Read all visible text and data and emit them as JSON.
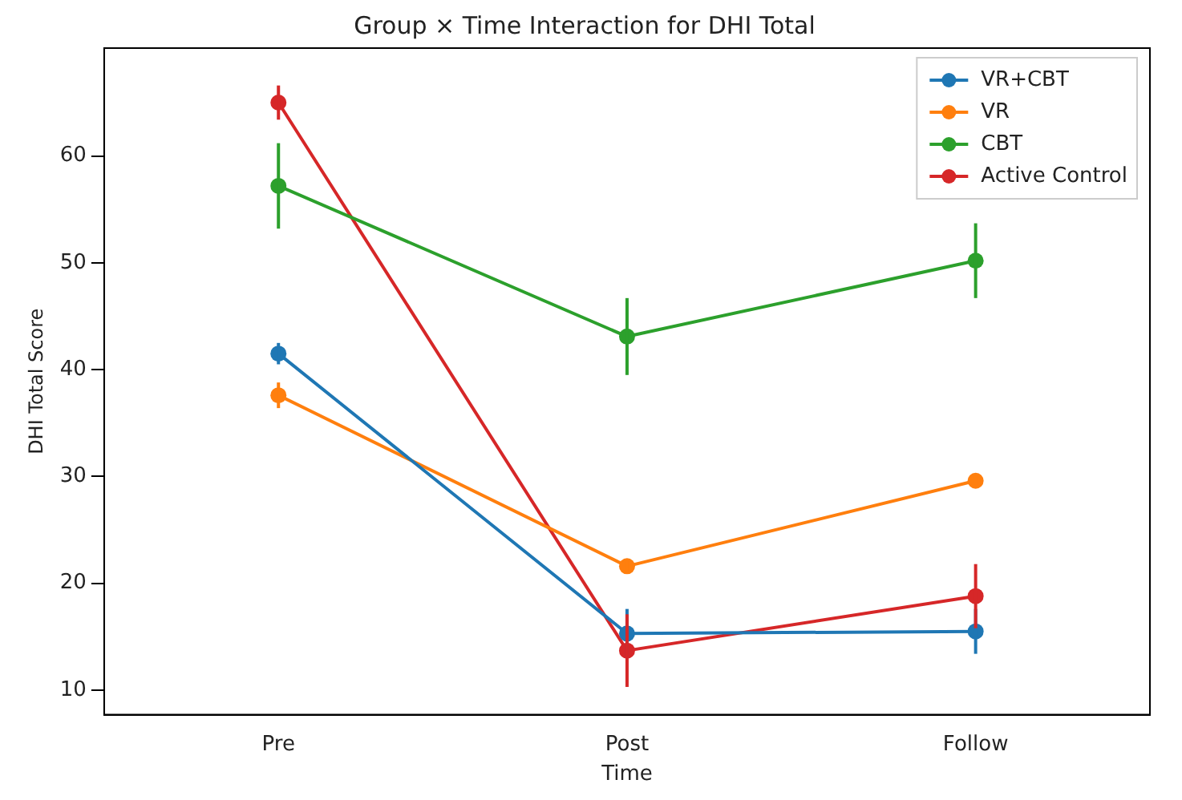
{
  "chart_data": {
    "type": "line",
    "title": "Group × Time Interaction for DHI Total",
    "xlabel": "Time",
    "ylabel": "DHI Total Score",
    "categories": [
      "Pre",
      "Post",
      "Follow"
    ],
    "series": [
      {
        "name": "VR+CBT",
        "color": "#1f77b4",
        "values": [
          41.5,
          15.3,
          15.5
        ],
        "errors": [
          1,
          2.3,
          2.1
        ]
      },
      {
        "name": "VR",
        "color": "#ff7f0e",
        "values": [
          37.6,
          21.6,
          29.6
        ],
        "errors": [
          1.2,
          0.5,
          0.5
        ]
      },
      {
        "name": "CBT",
        "color": "#2ca02c",
        "values": [
          57.2,
          43.1,
          50.2
        ],
        "errors": [
          4,
          3.6,
          3.5
        ]
      },
      {
        "name": "Active Control",
        "color": "#d62728",
        "values": [
          65,
          13.7,
          18.8
        ],
        "errors": [
          1.6,
          3.4,
          3
        ]
      }
    ],
    "ylim": [
      7.7,
      70.1
    ],
    "yticks": [
      10,
      20,
      30,
      40,
      50,
      60
    ],
    "grid": false,
    "legend": "top right",
    "marker": "circle",
    "line_style": "solid"
  }
}
